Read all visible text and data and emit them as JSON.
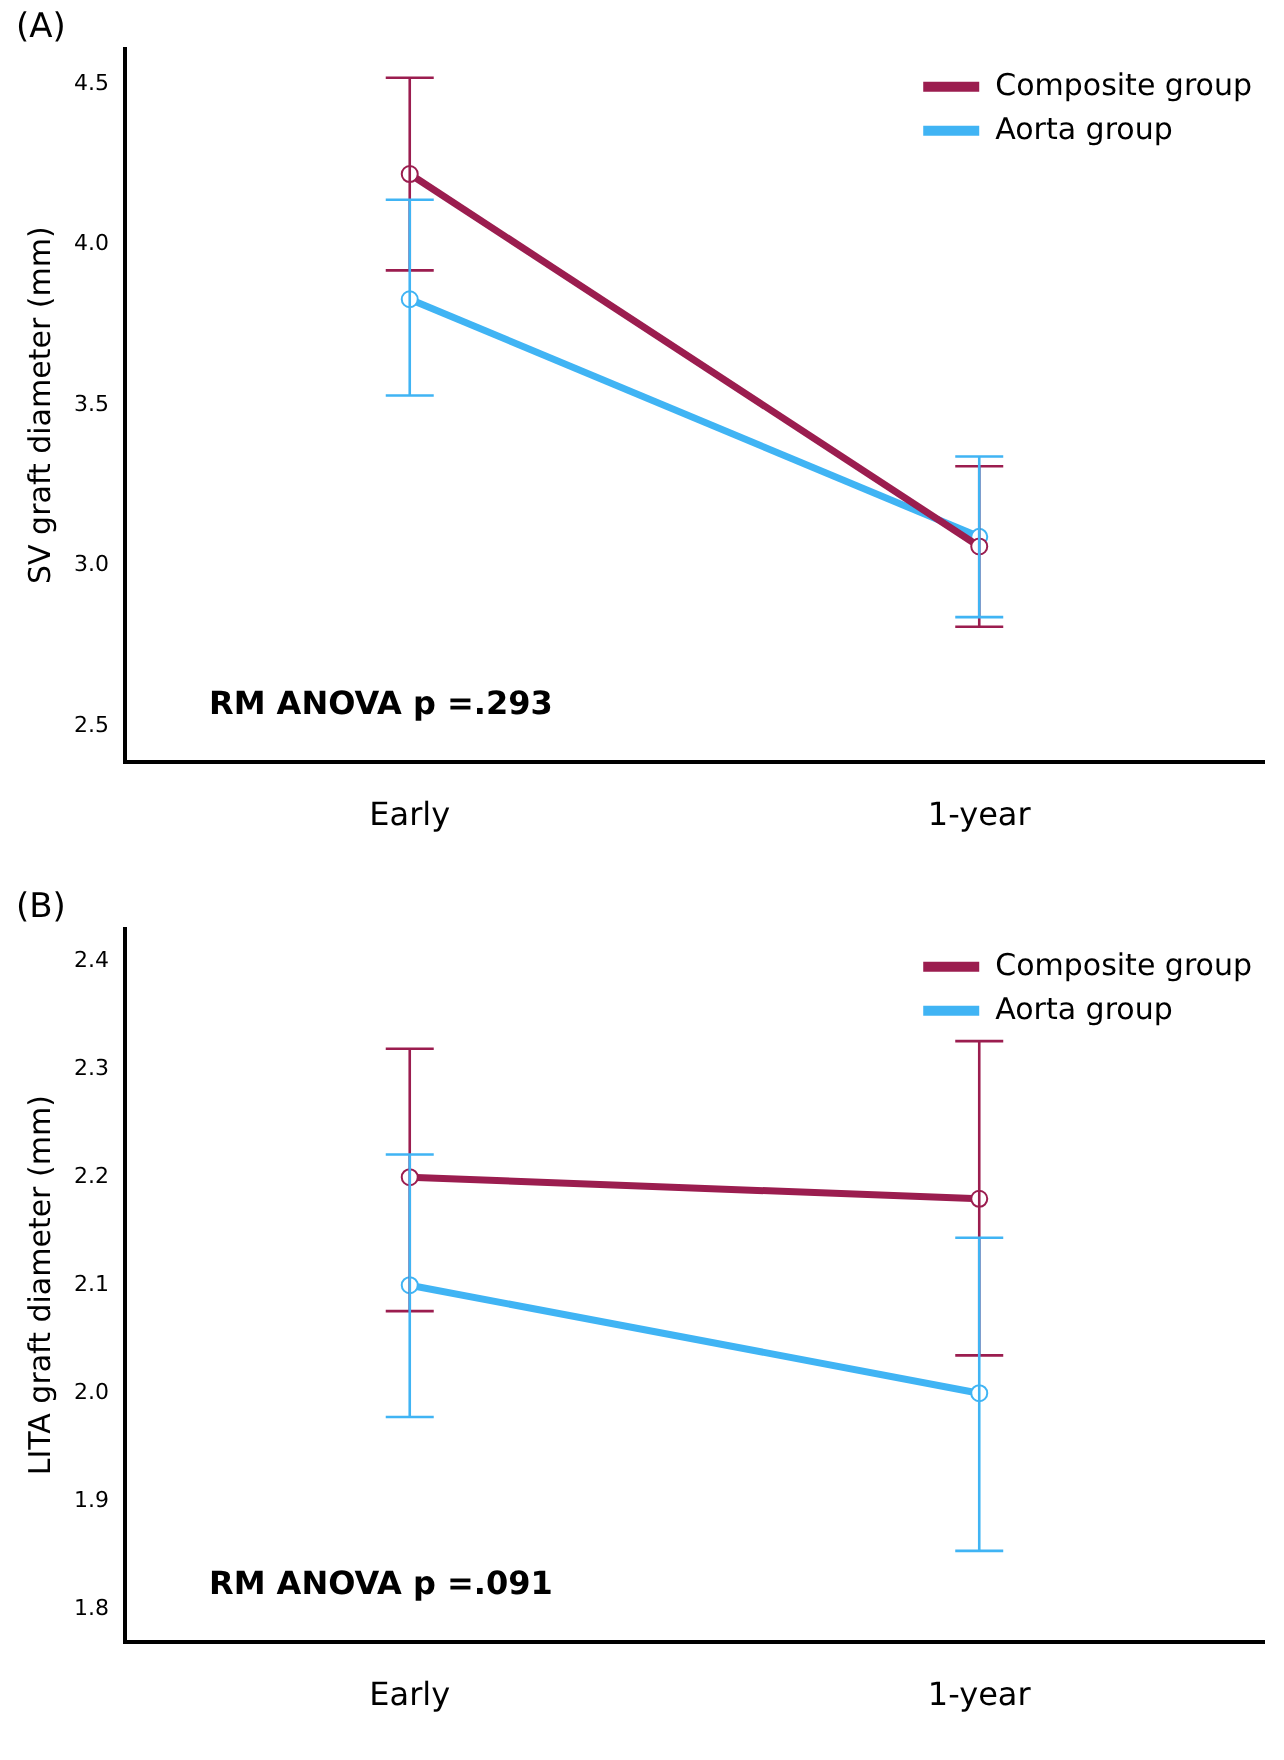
{
  "chart_data": [
    {
      "type": "line",
      "title": "(A)",
      "ylabel": "SV graft diameter (mm)",
      "categories": [
        "Early",
        "1-year"
      ],
      "series": [
        {
          "name": "Composite group",
          "color": "#9b1d4f",
          "values": [
            4.22,
            3.06
          ],
          "errors": [
            [
              3.92,
              4.52
            ],
            [
              2.81,
              3.31
            ]
          ]
        },
        {
          "name": "Aorta group",
          "color": "#40b4f4",
          "values": [
            3.83,
            3.09
          ],
          "errors": [
            [
              3.53,
              4.14
            ],
            [
              2.84,
              3.34
            ]
          ]
        }
      ],
      "ylim": [
        2.39,
        4.61
      ],
      "yticks": [
        2.5,
        {
          "value": 3,
          "label": "3.0"
        },
        3.5,
        {
          "value": 4,
          "label": "4.0"
        },
        4.5
      ],
      "grid": false,
      "legend": "top right",
      "marker": "circle",
      "line_style": "solid",
      "annotations": [
        "RM ANOVA p =.293"
      ]
    },
    {
      "type": "line",
      "title": "(B)",
      "ylabel": "LITA graft diameter (mm)",
      "categories": [
        "Early",
        "1-year"
      ],
      "series": [
        {
          "name": "Composite group",
          "color": "#9b1d4f",
          "values": [
            2.2,
            2.18
          ],
          "errors": [
            [
              2.076,
              2.319
            ],
            [
              2.035,
              2.326
            ]
          ]
        },
        {
          "name": "Aorta group",
          "color": "#40b4f4",
          "values": [
            2.1,
            2.0
          ],
          "errors": [
            [
              1.978,
              2.221
            ],
            [
              1.854,
              2.144
            ]
          ]
        }
      ],
      "ylim": [
        1.77,
        2.43
      ],
      "yticks": [
        1.8,
        1.9,
        {
          "value": 2,
          "label": "2.0"
        },
        2.1,
        2.2,
        2.3,
        2.4
      ],
      "grid": false,
      "legend": "top right",
      "marker": "circle",
      "line_style": "solid",
      "annotations": [
        "RM ANOVA p =.091"
      ]
    }
  ]
}
